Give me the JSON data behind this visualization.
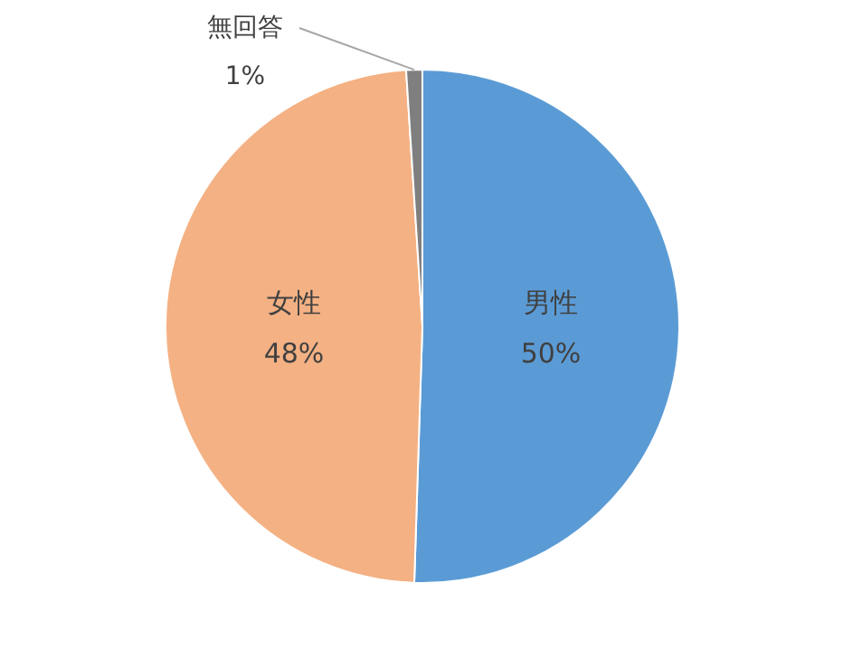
{
  "chart_data": {
    "type": "pie",
    "categories": [
      "男性",
      "女性",
      "無回答"
    ],
    "values": [
      50,
      48,
      1
    ],
    "colors": [
      "#5b9bd5",
      "#f4b183",
      "#7f7f7f"
    ],
    "value_labels": [
      "50%",
      "48%",
      "1%"
    ]
  }
}
